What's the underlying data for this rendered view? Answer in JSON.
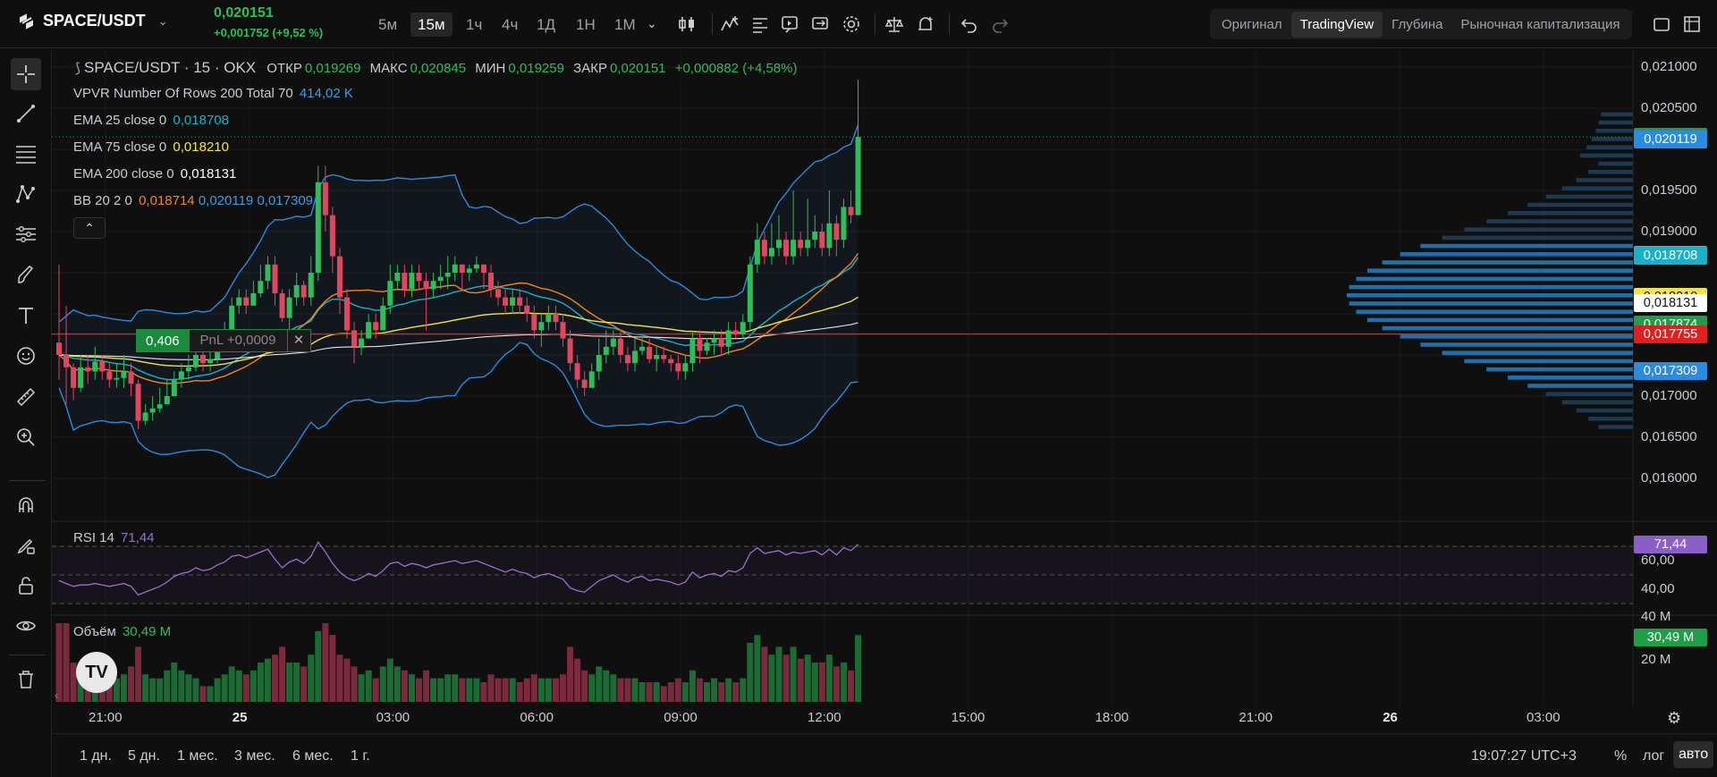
{
  "header": {
    "pair": "SPACE/USDT",
    "last_price": "0,020151",
    "change": "+0,001752 (+9,52 %)",
    "timeframes": [
      "5м",
      "15м",
      "1ч",
      "4ч",
      "1Д",
      "1Н",
      "1М"
    ],
    "active_timeframe": "15м",
    "views": [
      "Оригинал",
      "TradingView",
      "Глубина",
      "Рыночная капитализация"
    ],
    "active_view": "TradingView"
  },
  "icons": {
    "toolbar": [
      "chart-type-icon",
      "indicators-icon",
      "list-icon",
      "replay-icon",
      "compare-icon",
      "settings-icon",
      "scales-icon",
      "alert-icon",
      "undo-icon",
      "redo-icon",
      "fullscreen-icon",
      "screenshot-icon"
    ],
    "left": [
      "crosshair-icon",
      "trendline-icon",
      "fib-icon",
      "pattern-icon",
      "prediction-icon",
      "brush-icon",
      "text-icon",
      "emoji-icon",
      "ruler-icon",
      "zoom-icon",
      "magnet-icon",
      "lock-drawings-icon",
      "lock-icon",
      "eye-icon",
      "trash-icon"
    ]
  },
  "legend": {
    "symbol_line": "SPACE/USDT · 15 · OKX",
    "open_label": "ОТКР",
    "open": "0,019269",
    "high_label": "МАКС",
    "high": "0,020845",
    "low_label": "МИН",
    "low": "0,019259",
    "close_label": "ЗАКР",
    "close": "0,020151",
    "delta": "+0,000882 (+4,58%)",
    "vpvr_label": "VPVR Number Of Rows 200 Total 70",
    "vpvr_value": "414,02 K",
    "ema25_label": "EMA 25 close 0",
    "ema25_value": "0,018708",
    "ema75_label": "EMA 75 close 0",
    "ema75_value": "0,018210",
    "ema200_label": "EMA 200 close 0",
    "ema200_value": "0,018131",
    "bb_label": "BB 20 2 0",
    "bb_mid": "0,018714",
    "bb_up": "0,020119",
    "bb_low": "0,017309",
    "rsi_label": "RSI 14",
    "rsi_value": "71,44",
    "vol_label": "Объём",
    "vol_value": "30,49 M"
  },
  "position": {
    "qty": "0,406",
    "pnl": "PnL +0,0009",
    "close": "✕"
  },
  "price_axis": [
    "0,021000",
    "0,020500",
    "0,019500",
    "0,019000",
    "0,017000",
    "0,016500",
    "0,016000"
  ],
  "price_tags": [
    {
      "text": "0,020151",
      "color": "#1f9d47",
      "price": 0.020151
    },
    {
      "text": "0,020119",
      "color": "#2a8be0",
      "price": 0.020119
    },
    {
      "text": "0,018714",
      "color": "#f5841f",
      "price": 0.018714
    },
    {
      "text": "0,018708",
      "color": "#1ab0c8",
      "price": 0.018708
    },
    {
      "text": "0,018210",
      "color": "#f2e34b",
      "price": 0.01821
    },
    {
      "text": "0,018131",
      "color": "#ffffff",
      "price": 0.018131
    },
    {
      "text": "0,017874",
      "color": "#1f9d47",
      "price": 0.017874
    },
    {
      "text": "0,017755",
      "color": "#e02020",
      "price": 0.017755
    },
    {
      "text": "0,017309",
      "color": "#2a8be0",
      "price": 0.017309
    }
  ],
  "rsi_axis": [
    "60,00",
    "40,00"
  ],
  "rsi_tag": "71,44",
  "vol_axis": [
    "40 M",
    "20 M"
  ],
  "vol_tag": "30,49 M",
  "time_axis": [
    {
      "t": "21:00",
      "bold": false
    },
    {
      "t": "25",
      "bold": true
    },
    {
      "t": "03:00",
      "bold": false
    },
    {
      "t": "06:00",
      "bold": false
    },
    {
      "t": "09:00",
      "bold": false
    },
    {
      "t": "12:00",
      "bold": false
    },
    {
      "t": "15:00",
      "bold": false
    },
    {
      "t": "18:00",
      "bold": false
    },
    {
      "t": "21:00",
      "bold": false
    },
    {
      "t": "26",
      "bold": true
    },
    {
      "t": "03:00",
      "bold": false
    }
  ],
  "bottom": {
    "ranges": [
      "1 дн.",
      "5 дн.",
      "1 мес.",
      "3 мес.",
      "6 мес.",
      "1 г."
    ],
    "clock": "19:07:27 UTC+3",
    "percent": "%",
    "log": "лог",
    "auto": "авто"
  },
  "colors": {
    "up": "#2ebd59",
    "down": "#e0465e",
    "bg": "#0f0f0f"
  },
  "chart_data": {
    "type": "candlestick",
    "timeframe": "15м",
    "order_line": 0.017755,
    "candles": [
      [
        0.01765,
        0.0175,
        0.0186,
        0.0172,
        1
      ],
      [
        0.0175,
        0.01735,
        0.0181,
        0.0169,
        1
      ],
      [
        0.01735,
        0.0171,
        0.0174,
        0.01695,
        0.5
      ],
      [
        0.0171,
        0.01735,
        0.0175,
        0.01705,
        0.4
      ],
      [
        0.01735,
        0.0173,
        0.0175,
        0.01715,
        0.45
      ],
      [
        0.0173,
        0.01742,
        0.0176,
        0.0172,
        0.4
      ],
      [
        0.01742,
        0.0173,
        0.0175,
        0.0172,
        0.35
      ],
      [
        0.0173,
        0.0172,
        0.0174,
        0.0171,
        0.3
      ],
      [
        0.0172,
        0.01722,
        0.0174,
        0.0171,
        0.3
      ],
      [
        0.01722,
        0.0173,
        0.0175,
        0.0171,
        0.35
      ],
      [
        0.0173,
        0.01715,
        0.0174,
        0.017,
        0.45
      ],
      [
        0.01715,
        0.0167,
        0.0172,
        0.0166,
        0.7
      ],
      [
        0.0167,
        0.0168,
        0.0169,
        0.01665,
        0.35
      ],
      [
        0.0168,
        0.01685,
        0.017,
        0.0167,
        0.3
      ],
      [
        0.01685,
        0.0169,
        0.0171,
        0.0168,
        0.3
      ],
      [
        0.0169,
        0.017,
        0.0172,
        0.0169,
        0.4
      ],
      [
        0.017,
        0.0172,
        0.0173,
        0.017,
        0.5
      ],
      [
        0.0172,
        0.0173,
        0.0174,
        0.0171,
        0.4
      ],
      [
        0.0173,
        0.01735,
        0.0175,
        0.0172,
        0.35
      ],
      [
        0.01735,
        0.0175,
        0.0176,
        0.0173,
        0.3
      ],
      [
        0.0175,
        0.0174,
        0.0176,
        0.0173,
        0.2
      ],
      [
        0.0174,
        0.01745,
        0.0176,
        0.0173,
        0.2
      ],
      [
        0.01745,
        0.0177,
        0.0178,
        0.0174,
        0.3
      ],
      [
        0.0177,
        0.0178,
        0.0179,
        0.0176,
        0.35
      ],
      [
        0.0178,
        0.0181,
        0.0182,
        0.0177,
        0.45
      ],
      [
        0.0181,
        0.0182,
        0.0183,
        0.018,
        0.4
      ],
      [
        0.0182,
        0.0181,
        0.0183,
        0.018,
        0.35
      ],
      [
        0.0181,
        0.01825,
        0.0184,
        0.0181,
        0.4
      ],
      [
        0.01825,
        0.0184,
        0.0186,
        0.0182,
        0.5
      ],
      [
        0.0184,
        0.0186,
        0.0187,
        0.0183,
        0.55
      ],
      [
        0.0186,
        0.01825,
        0.0187,
        0.0181,
        0.6
      ],
      [
        0.01825,
        0.01795,
        0.0183,
        0.0179,
        0.7
      ],
      [
        0.01795,
        0.0182,
        0.0183,
        0.0178,
        0.5
      ],
      [
        0.0182,
        0.01835,
        0.0185,
        0.0181,
        0.5
      ],
      [
        0.01835,
        0.0182,
        0.0184,
        0.0181,
        0.45
      ],
      [
        0.0182,
        0.0185,
        0.0187,
        0.0181,
        0.6
      ],
      [
        0.0185,
        0.0196,
        0.0198,
        0.0184,
        0.9
      ],
      [
        0.0196,
        0.0192,
        0.0198,
        0.019,
        1
      ],
      [
        0.0192,
        0.0187,
        0.0193,
        0.0185,
        0.85
      ],
      [
        0.0187,
        0.0182,
        0.0188,
        0.018,
        0.6
      ],
      [
        0.0182,
        0.0178,
        0.0183,
        0.0177,
        0.55
      ],
      [
        0.0178,
        0.0176,
        0.0179,
        0.0174,
        0.45
      ],
      [
        0.0176,
        0.0177,
        0.0178,
        0.0175,
        0.35
      ],
      [
        0.0177,
        0.0179,
        0.018,
        0.0177,
        0.4
      ],
      [
        0.0179,
        0.0178,
        0.018,
        0.0177,
        0.3
      ],
      [
        0.0178,
        0.0181,
        0.0182,
        0.0178,
        0.45
      ],
      [
        0.0181,
        0.0184,
        0.0186,
        0.018,
        0.55
      ],
      [
        0.0184,
        0.0185,
        0.0186,
        0.0183,
        0.45
      ],
      [
        0.0185,
        0.0183,
        0.0186,
        0.0182,
        0.4
      ],
      [
        0.0183,
        0.0185,
        0.0186,
        0.0182,
        0.35
      ],
      [
        0.0185,
        0.0184,
        0.0186,
        0.0183,
        0.3
      ],
      [
        0.0184,
        0.0183,
        0.0185,
        0.0178,
        0.4
      ],
      [
        0.0183,
        0.0184,
        0.0185,
        0.0182,
        0.3
      ],
      [
        0.0184,
        0.01845,
        0.0186,
        0.0183,
        0.3
      ],
      [
        0.01845,
        0.0185,
        0.0187,
        0.0183,
        0.35
      ],
      [
        0.0185,
        0.0186,
        0.0187,
        0.0184,
        0.35
      ],
      [
        0.0186,
        0.0185,
        0.0186,
        0.0183,
        0.3
      ],
      [
        0.0185,
        0.01855,
        0.0186,
        0.0184,
        0.3
      ],
      [
        0.01855,
        0.0186,
        0.0187,
        0.0185,
        0.3
      ],
      [
        0.0186,
        0.0185,
        0.0186,
        0.0183,
        0.25
      ],
      [
        0.0185,
        0.0183,
        0.0186,
        0.0182,
        0.35
      ],
      [
        0.0183,
        0.0182,
        0.0184,
        0.0181,
        0.3
      ],
      [
        0.0182,
        0.0181,
        0.0183,
        0.018,
        0.3
      ],
      [
        0.0181,
        0.0182,
        0.0183,
        0.018,
        0.3
      ],
      [
        0.0182,
        0.0181,
        0.0183,
        0.018,
        0.25
      ],
      [
        0.0181,
        0.018,
        0.0182,
        0.0179,
        0.3
      ],
      [
        0.018,
        0.0178,
        0.0181,
        0.0177,
        0.35
      ],
      [
        0.0178,
        0.0179,
        0.018,
        0.0176,
        0.3
      ],
      [
        0.0179,
        0.018,
        0.0181,
        0.0178,
        0.3
      ],
      [
        0.018,
        0.0179,
        0.0181,
        0.0178,
        0.3
      ],
      [
        0.0179,
        0.0177,
        0.018,
        0.0176,
        0.35
      ],
      [
        0.0177,
        0.0174,
        0.0178,
        0.0173,
        0.7
      ],
      [
        0.0174,
        0.0172,
        0.0175,
        0.0171,
        0.55
      ],
      [
        0.0172,
        0.0171,
        0.0173,
        0.017,
        0.4
      ],
      [
        0.0171,
        0.0173,
        0.0174,
        0.0171,
        0.35
      ],
      [
        0.0173,
        0.0175,
        0.0177,
        0.0172,
        0.45
      ],
      [
        0.0175,
        0.0176,
        0.0178,
        0.0174,
        0.4
      ],
      [
        0.0176,
        0.0177,
        0.0178,
        0.0175,
        0.35
      ],
      [
        0.0177,
        0.0175,
        0.0178,
        0.0174,
        0.3
      ],
      [
        0.0175,
        0.0174,
        0.0176,
        0.0173,
        0.3
      ],
      [
        0.0174,
        0.01755,
        0.0177,
        0.0173,
        0.3
      ],
      [
        0.01755,
        0.0176,
        0.0177,
        0.0175,
        0.25
      ],
      [
        0.0176,
        0.01745,
        0.0177,
        0.0174,
        0.25
      ],
      [
        0.01745,
        0.0175,
        0.0176,
        0.0173,
        0.25
      ],
      [
        0.0175,
        0.01745,
        0.0176,
        0.0174,
        0.2
      ],
      [
        0.01745,
        0.0174,
        0.0175,
        0.0173,
        0.25
      ],
      [
        0.0174,
        0.0173,
        0.0175,
        0.0172,
        0.3
      ],
      [
        0.0173,
        0.0174,
        0.0175,
        0.0172,
        0.25
      ],
      [
        0.0174,
        0.0177,
        0.0178,
        0.0173,
        0.4
      ],
      [
        0.0177,
        0.01755,
        0.0178,
        0.0174,
        0.3
      ],
      [
        0.01755,
        0.01765,
        0.0177,
        0.0175,
        0.25
      ],
      [
        0.01765,
        0.0177,
        0.0178,
        0.0175,
        0.3
      ],
      [
        0.0177,
        0.0176,
        0.0178,
        0.0175,
        0.25
      ],
      [
        0.0176,
        0.0178,
        0.0179,
        0.0175,
        0.3
      ],
      [
        0.0178,
        0.01775,
        0.0179,
        0.0177,
        0.25
      ],
      [
        0.01775,
        0.0179,
        0.018,
        0.0177,
        0.3
      ],
      [
        0.0179,
        0.0186,
        0.0187,
        0.0178,
        0.75
      ],
      [
        0.0186,
        0.0189,
        0.0191,
        0.0185,
        0.85
      ],
      [
        0.0189,
        0.0187,
        0.019,
        0.0186,
        0.7
      ],
      [
        0.0187,
        0.0188,
        0.0191,
        0.0186,
        0.6
      ],
      [
        0.0188,
        0.0189,
        0.0192,
        0.0187,
        0.7
      ],
      [
        0.0189,
        0.0187,
        0.019,
        0.0186,
        0.6
      ],
      [
        0.0187,
        0.0189,
        0.0195,
        0.0186,
        0.7
      ],
      [
        0.0189,
        0.0188,
        0.019,
        0.0187,
        0.55
      ],
      [
        0.0188,
        0.0189,
        0.0194,
        0.0187,
        0.6
      ],
      [
        0.0189,
        0.019,
        0.0192,
        0.0188,
        0.5
      ],
      [
        0.019,
        0.0188,
        0.0191,
        0.0187,
        0.5
      ],
      [
        0.0188,
        0.0191,
        0.0195,
        0.0187,
        0.6
      ],
      [
        0.0191,
        0.0189,
        0.0192,
        0.0187,
        0.45
      ],
      [
        0.0189,
        0.0193,
        0.0194,
        0.0188,
        0.5
      ],
      [
        0.0193,
        0.0192,
        0.0195,
        0.0191,
        0.4
      ],
      [
        0.0192,
        0.020151,
        0.020845,
        0.0192,
        0.85
      ]
    ],
    "rsi": [
      46,
      44,
      42,
      43,
      43,
      44,
      43,
      42,
      43,
      44,
      42,
      36,
      38,
      40,
      42,
      45,
      49,
      51,
      52,
      55,
      53,
      54,
      57,
      59,
      63,
      64,
      62,
      64,
      66,
      68,
      61,
      55,
      59,
      61,
      58,
      63,
      73,
      66,
      58,
      52,
      48,
      46,
      48,
      51,
      49,
      53,
      58,
      59,
      56,
      58,
      57,
      55,
      57,
      58,
      59,
      60,
      58,
      59,
      60,
      58,
      56,
      54,
      52,
      54,
      52,
      51,
      48,
      50,
      51,
      49,
      47,
      41,
      39,
      38,
      42,
      46,
      48,
      50,
      47,
      45,
      48,
      49,
      46,
      47,
      46,
      45,
      43,
      45,
      52,
      48,
      50,
      51,
      49,
      53,
      52,
      55,
      65,
      69,
      65,
      66,
      67,
      64,
      66,
      65,
      66,
      67,
      64,
      68,
      64,
      69,
      67,
      71.44
    ]
  }
}
